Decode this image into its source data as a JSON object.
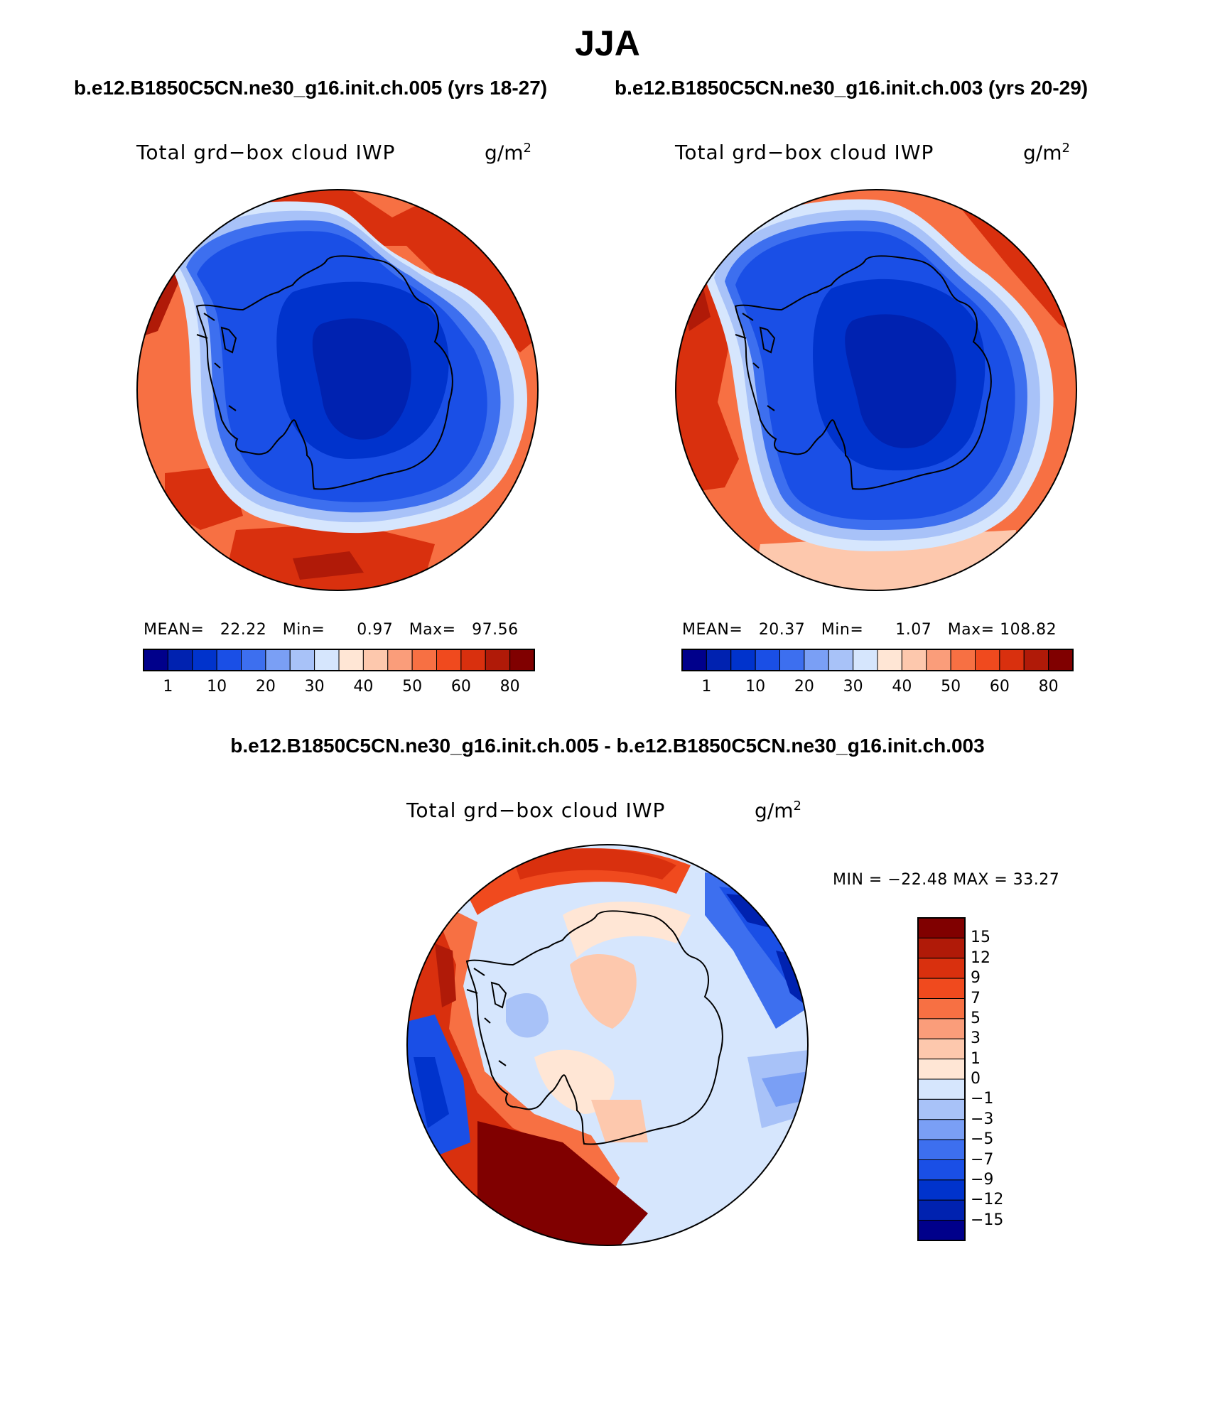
{
  "title": "JJA",
  "panels": [
    {
      "id": "case1",
      "case_title": "b.e12.B1850C5CN.ne30_g16.init.ch.005 (yrs 18-27)",
      "variable": "Total grd−box cloud IWP",
      "units_base": "g/m",
      "units_exp": "2",
      "stats": {
        "mean_label": "MEAN=",
        "mean": "22.22",
        "min_label": "Min=",
        "min": "0.97",
        "max_label": "Max=",
        "max": "97.56"
      }
    },
    {
      "id": "case2",
      "case_title": "b.e12.B1850C5CN.ne30_g16.init.ch.003 (yrs 20-29)",
      "variable": "Total grd−box cloud IWP",
      "units_base": "g/m",
      "units_exp": "2",
      "stats": {
        "mean_label": "MEAN=",
        "mean": "20.37",
        "min_label": "Min=",
        "min": "1.07",
        "max_label": "Max=",
        "max": "108.82"
      }
    },
    {
      "id": "diff",
      "case_title": "b.e12.B1850C5CN.ne30_g16.init.ch.005 - b.e12.B1850C5CN.ne30_g16.init.ch.003",
      "variable": "Total grd−box cloud IWP",
      "units_base": "g/m",
      "units_exp": "2",
      "stats": {
        "minmax": "MIN = −22.48 MAX =   33.27"
      }
    }
  ],
  "colorbar_abs": {
    "colors": [
      "#00008b",
      "#0022b0",
      "#0033cc",
      "#1a4fe6",
      "#3d6fef",
      "#7a9ff5",
      "#a8c2f8",
      "#d6e6fd",
      "#ffe6d5",
      "#fdc8ad",
      "#fa9d7a",
      "#f77043",
      "#f04a1e",
      "#d9300e",
      "#b01a08",
      "#800000"
    ],
    "labels": [
      "1",
      "10",
      "20",
      "30",
      "40",
      "50",
      "60",
      "80"
    ]
  },
  "colorbar_diff": {
    "colors": [
      "#800000",
      "#b01a08",
      "#d9300e",
      "#f04a1e",
      "#f77043",
      "#fa9d7a",
      "#fdc8ad",
      "#ffe6d5",
      "#d6e6fd",
      "#a8c2f8",
      "#7a9ff5",
      "#3d6fef",
      "#1a4fe6",
      "#0033cc",
      "#0022b0",
      "#00008b"
    ],
    "labels": [
      "15",
      "12",
      "9",
      "7",
      "5",
      "3",
      "1",
      "0",
      "−1",
      "−3",
      "−5",
      "−7",
      "−9",
      "−12",
      "−15"
    ]
  }
}
